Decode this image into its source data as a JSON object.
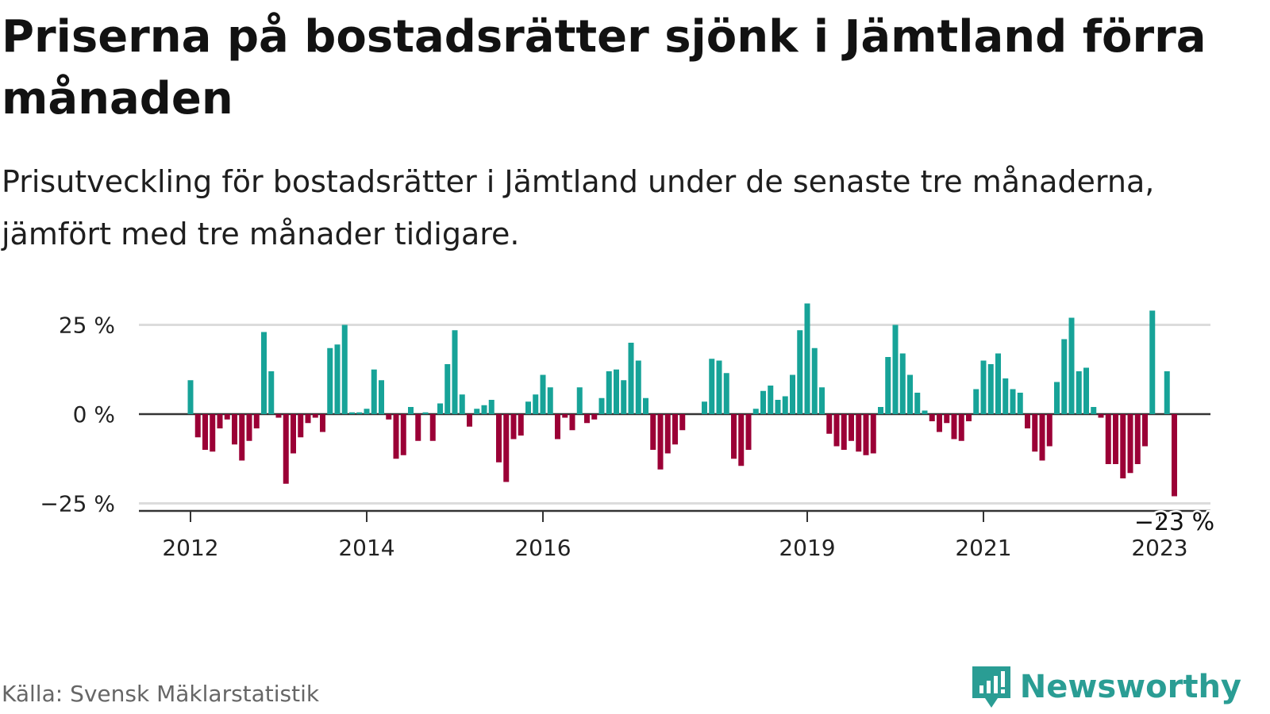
{
  "title": "Priserna på bostadsrätter sjönk i Jämtland förra månaden",
  "subtitle": "Prisutveckling för bostadsrätter i Jämtland under de senaste tre månaderna, jämfört med tre månader tidigare.",
  "source": "Källa: Svensk Mäklarstatistik",
  "brand": "Newsworthy",
  "chart_data": {
    "type": "bar",
    "unit": "%",
    "ylim": [
      -28,
      32
    ],
    "y_ticks": [
      25,
      0,
      -25
    ],
    "y_tick_labels": [
      "25 %",
      "0 %",
      "−25 %"
    ],
    "x_ticks": [
      {
        "label": "2012",
        "index": 0
      },
      {
        "label": "2014",
        "index": 24
      },
      {
        "label": "2016",
        "index": 48
      },
      {
        "label": "2019",
        "index": 84
      },
      {
        "label": "2021",
        "index": 108
      },
      {
        "label": "2023",
        "index": 132
      }
    ],
    "x_start": "2012-01",
    "values": [
      9.5,
      -6.5,
      -10,
      -10.5,
      -4,
      -1.5,
      -8.5,
      -13,
      -7.5,
      -4,
      23,
      12,
      -1,
      -19.5,
      -11,
      -6.5,
      -2.5,
      -1,
      -5,
      18.5,
      19.5,
      25,
      0.5,
      0.5,
      1.5,
      12.5,
      9.5,
      -1.5,
      -12.5,
      -11.5,
      2,
      -7.5,
      0.5,
      -7.5,
      3,
      14,
      23.5,
      5.5,
      -3.5,
      1.5,
      2.5,
      4,
      -13.5,
      -19,
      -7,
      -6,
      3.5,
      5.5,
      11,
      7.5,
      -7,
      -1,
      -4.5,
      7.5,
      -2.5,
      -1.5,
      4.5,
      12,
      12.5,
      9.5,
      20,
      15,
      4.5,
      -10,
      -15.5,
      -11,
      -8.5,
      -4.5,
      null,
      null,
      3.5,
      15.5,
      15,
      11.5,
      -12.5,
      -14.5,
      -10,
      1.5,
      6.5,
      8,
      4,
      5,
      11,
      23.5,
      31,
      18.5,
      7.5,
      -5.5,
      -9,
      -10,
      -7.5,
      -10.5,
      -11.5,
      -11,
      2,
      16,
      25,
      17,
      11,
      6,
      1,
      -2,
      -5,
      -2.5,
      -7,
      -7.5,
      -2,
      7,
      15,
      14,
      17,
      10,
      7,
      6,
      -4,
      -10.5,
      -13,
      -9,
      9,
      21,
      27,
      12,
      13,
      2,
      -1,
      -14,
      -14,
      -18,
      -16.5,
      -14,
      -9,
      29,
      null,
      12,
      -23
    ],
    "positive_color": "#17a398",
    "negative_color": "#9b0036",
    "last_value_label": "−23 %"
  }
}
